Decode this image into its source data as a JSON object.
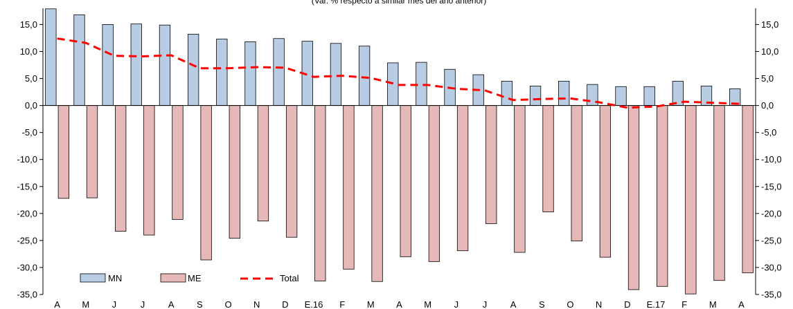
{
  "chart_data": {
    "type": "bar",
    "subtitle": "(Var. % respecto a similar mes del año anterior)",
    "categories": [
      "A",
      "M",
      "J",
      "J",
      "A",
      "S",
      "O",
      "N",
      "D",
      "E.16",
      "F",
      "M",
      "A",
      "M",
      "J",
      "J",
      "A",
      "S",
      "O",
      "N",
      "D",
      "E.17",
      "F",
      "M",
      "A"
    ],
    "y_ticks": [
      "15,0",
      "10,0",
      "5,0",
      "0,0",
      "-5,0",
      "-10,0",
      "-15,0",
      "-20,0",
      "-25,0",
      "-30,0",
      "-35,0"
    ],
    "ylim": [
      -35,
      18
    ],
    "grid": false,
    "legend": "bottom-left",
    "series": [
      {
        "name": "MN",
        "kind": "bar",
        "color": "#b8cce4",
        "values": [
          17.9,
          16.8,
          15.0,
          15.1,
          14.9,
          13.2,
          12.3,
          11.8,
          12.4,
          11.9,
          11.5,
          11.0,
          7.9,
          8.0,
          6.7,
          5.7,
          4.5,
          3.6,
          4.5,
          3.9,
          3.5,
          3.5,
          4.5,
          3.6,
          3.1
        ]
      },
      {
        "name": "ME",
        "kind": "bar",
        "color": "#e6b8b7",
        "values": [
          -17.2,
          -17.1,
          -23.3,
          -24.0,
          -21.1,
          -28.6,
          -24.6,
          -21.4,
          -24.4,
          -32.5,
          -30.3,
          -32.6,
          -28.0,
          -28.9,
          -26.9,
          -21.9,
          -27.2,
          -19.7,
          -25.1,
          -28.1,
          -34.1,
          -33.5,
          -34.9,
          -32.4,
          -31.0
        ]
      },
      {
        "name": "Total",
        "kind": "line",
        "color": "#ff0000",
        "values": [
          12.4,
          11.6,
          9.2,
          9.1,
          9.3,
          6.9,
          6.9,
          7.1,
          7.0,
          5.3,
          5.5,
          5.1,
          3.8,
          3.8,
          3.1,
          2.8,
          1.0,
          1.2,
          1.3,
          0.6,
          -0.4,
          -0.2,
          0.7,
          0.5,
          0.3
        ]
      }
    ]
  }
}
